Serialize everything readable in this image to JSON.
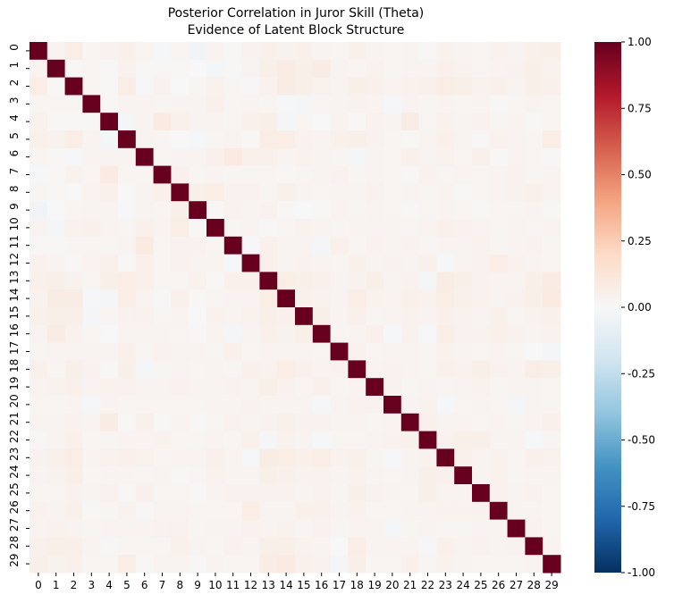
{
  "chart_data": {
    "type": "heatmap",
    "title": "Posterior Correlation in Juror Skill (Theta)",
    "subtitle": "Evidence of Latent Block Structure",
    "xlabel": "",
    "ylabel": "",
    "labels": [
      "0",
      "1",
      "2",
      "3",
      "4",
      "5",
      "6",
      "7",
      "8",
      "9",
      "10",
      "11",
      "12",
      "13",
      "14",
      "15",
      "16",
      "17",
      "18",
      "19",
      "20",
      "21",
      "22",
      "23",
      "24",
      "25",
      "26",
      "27",
      "28",
      "29"
    ],
    "diagonal": 1.0,
    "symmetric": true,
    "matrix_upper": [
      [
        0.03,
        0.07,
        0.02,
        0.04,
        0.05,
        0.02,
        -0.01,
        0.02,
        -0.03,
        0.03,
        0.01,
        0.04,
        0.05,
        0.04,
        0.05,
        0.03,
        0.02,
        0.05,
        0.03,
        0.02,
        0.03,
        0.01,
        0.04,
        0.03,
        0.02,
        0.04,
        0.03,
        0.05,
        0.06
      ],
      [
        0.01,
        0.02,
        0.01,
        0.04,
        0.01,
        0.01,
        0.01,
        0.0,
        -0.02,
        0.01,
        0.03,
        0.06,
        0.08,
        0.06,
        0.08,
        0.03,
        0.02,
        0.04,
        0.02,
        0.03,
        0.03,
        0.05,
        0.04,
        0.02,
        0.03,
        0.04,
        0.06,
        0.04
      ],
      [
        0.02,
        0.01,
        0.07,
        -0.01,
        0.04,
        0.0,
        0.02,
        0.04,
        0.02,
        0.01,
        0.04,
        0.08,
        0.06,
        0.04,
        0.03,
        0.06,
        0.05,
        0.03,
        0.04,
        0.05,
        0.07,
        0.06,
        0.04,
        0.05,
        0.03,
        0.06,
        0.05
      ],
      [
        0.01,
        0.03,
        0.03,
        0.02,
        0.03,
        0.03,
        0.05,
        0.02,
        0.03,
        0.02,
        -0.01,
        -0.02,
        0.02,
        0.03,
        0.04,
        0.03,
        -0.01,
        0.03,
        0.02,
        0.03,
        0.02,
        0.03,
        0.01,
        0.02,
        0.03,
        0.02
      ],
      [
        -0.02,
        0.03,
        0.09,
        0.05,
        0.03,
        0.03,
        0.02,
        0.05,
        0.06,
        -0.02,
        0.02,
        0.0,
        0.03,
        0.01,
        0.04,
        0.03,
        0.08,
        0.02,
        0.04,
        0.03,
        0.04,
        0.02,
        0.03,
        0.01,
        0.02
      ],
      [
        0.03,
        0.02,
        0.0,
        -0.01,
        0.02,
        0.03,
        0.01,
        0.07,
        0.07,
        0.04,
        0.03,
        0.05,
        0.06,
        0.04,
        0.02,
        0.01,
        0.03,
        0.05,
        0.03,
        0.01,
        0.04,
        0.03,
        0.02,
        0.07
      ],
      [
        0.02,
        0.03,
        0.03,
        0.05,
        0.09,
        0.05,
        0.05,
        0.03,
        0.04,
        0.03,
        0.02,
        -0.02,
        0.03,
        0.02,
        0.05,
        0.03,
        0.04,
        0.02,
        0.05,
        0.01,
        0.03,
        0.02,
        0.01
      ],
      [
        0.05,
        0.02,
        0.03,
        0.02,
        0.02,
        0.02,
        0.01,
        0.02,
        0.03,
        0.04,
        0.02,
        0.03,
        0.02,
        0.01,
        0.04,
        0.02,
        0.03,
        0.02,
        0.03,
        0.04,
        0.02,
        0.03
      ],
      [
        0.06,
        0.07,
        0.04,
        0.04,
        0.02,
        0.05,
        0.03,
        0.02,
        0.03,
        0.03,
        0.04,
        0.02,
        0.03,
        0.02,
        0.03,
        0.01,
        0.02,
        0.03,
        0.04,
        0.05,
        0.03
      ],
      [
        0.01,
        0.04,
        0.03,
        0.04,
        0.01,
        0.0,
        0.01,
        0.03,
        0.02,
        0.03,
        0.02,
        0.01,
        0.02,
        0.03,
        0.02,
        0.01,
        0.02,
        0.02,
        0.03,
        0.01
      ],
      [
        0.02,
        0.03,
        0.01,
        0.02,
        0.04,
        0.03,
        0.02,
        0.03,
        0.03,
        0.03,
        0.02,
        0.03,
        0.05,
        0.04,
        0.03,
        0.02,
        0.03,
        0.02,
        0.03
      ],
      [
        -0.01,
        0.05,
        0.03,
        0.03,
        -0.02,
        0.05,
        0.02,
        0.04,
        0.03,
        0.04,
        0.02,
        0.03,
        0.03,
        0.04,
        0.02,
        0.03,
        0.04,
        0.02
      ],
      [
        0.05,
        0.03,
        0.04,
        0.03,
        0.02,
        0.05,
        0.03,
        0.04,
        0.03,
        0.05,
        -0.01,
        0.03,
        0.04,
        0.07,
        0.04,
        0.03,
        0.02
      ],
      [
        0.07,
        0.06,
        0.05,
        0.03,
        0.04,
        0.06,
        0.03,
        0.04,
        -0.02,
        0.08,
        0.06,
        0.04,
        0.03,
        0.03,
        0.06,
        0.08
      ],
      [
        0.05,
        0.04,
        0.03,
        0.07,
        0.04,
        0.03,
        0.05,
        0.04,
        0.07,
        0.05,
        0.04,
        0.03,
        0.04,
        0.06,
        0.09
      ],
      [
        0.06,
        0.03,
        0.05,
        0.02,
        0.03,
        0.04,
        0.03,
        0.05,
        0.04,
        0.03,
        0.05,
        0.02,
        0.04,
        0.05
      ],
      [
        0.02,
        0.03,
        0.05,
        -0.01,
        0.04,
        -0.01,
        0.07,
        0.04,
        0.04,
        0.05,
        0.04,
        0.03,
        0.04
      ],
      [
        0.04,
        0.02,
        0.03,
        0.03,
        0.02,
        0.04,
        0.03,
        0.02,
        0.03,
        0.02,
        0.0,
        -0.02
      ],
      [
        0.03,
        0.04,
        0.03,
        0.02,
        0.05,
        0.04,
        0.06,
        0.04,
        0.03,
        0.07,
        0.06
      ],
      [
        0.04,
        0.02,
        0.03,
        0.02,
        0.03,
        0.04,
        0.02,
        0.03,
        0.03,
        0.02
      ],
      [
        0.03,
        0.04,
        -0.01,
        0.02,
        0.03,
        0.02,
        -0.02,
        0.03,
        0.02
      ],
      [
        0.05,
        0.03,
        0.03,
        0.02,
        0.03,
        0.02,
        0.03,
        0.05
      ],
      [
        0.04,
        0.06,
        0.06,
        0.03,
        0.03,
        -0.01,
        0.02
      ],
      [
        0.05,
        0.03,
        0.04,
        0.02,
        0.05,
        0.04
      ],
      [
        0.03,
        0.04,
        0.02,
        0.03,
        0.03
      ],
      [
        0.04,
        0.03,
        0.04,
        0.02
      ],
      [
        0.03,
        0.03,
        0.02
      ],
      [
        0.04,
        0.02
      ],
      [
        0.03
      ],
      []
    ],
    "colorbar": {
      "colormap": "RdBu_r",
      "vmin": -1.0,
      "vmax": 1.0,
      "ticks": [
        "1.00",
        "0.75",
        "0.50",
        "0.25",
        "0.00",
        "-0.25",
        "-0.50",
        "-0.75",
        "-1.00"
      ],
      "tick_values": [
        1.0,
        0.75,
        0.5,
        0.25,
        0.0,
        -0.25,
        -0.5,
        -0.75,
        -1.0
      ]
    },
    "grid": false,
    "legend": "colorbar-right"
  }
}
